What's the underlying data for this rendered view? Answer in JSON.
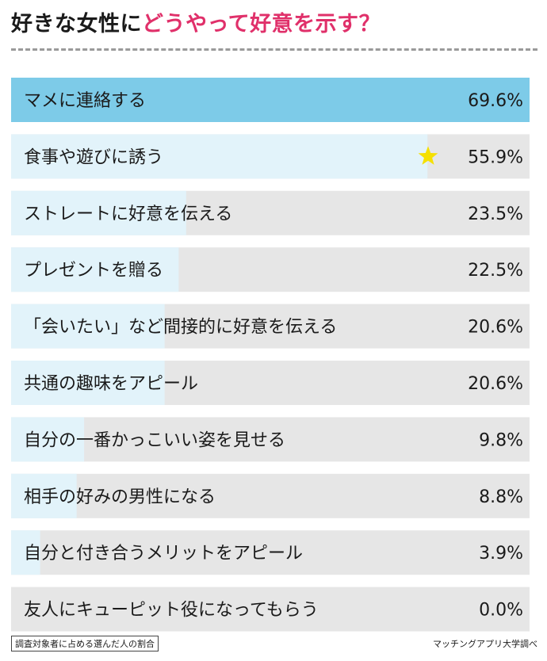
{
  "header": {
    "title_main": "好きな女性に",
    "title_accent": "どうやって好意を示す？"
  },
  "colors": {
    "accent": "#e0306a",
    "bar_top": "#7dcbe8",
    "bar_fill": "#e2f3fa",
    "bar_track": "#e6e6e6",
    "star": "#f5e000"
  },
  "chart_data": {
    "type": "bar",
    "orientation": "horizontal",
    "categories": [
      "マメに連絡する",
      "食事や遊びに誘う",
      "ストレートに好意を伝える",
      "プレゼントを贈る",
      "「会いたい」など間接的に好意を伝える",
      "共通の趣味をアピール",
      "自分の一番かっこいい姿を見せる",
      "相手の好みの男性になる",
      "自分と付き合うメリットをアピール",
      "友人にキューピット役になってもらう"
    ],
    "values": [
      69.6,
      55.9,
      23.5,
      22.5,
      20.6,
      20.6,
      9.8,
      8.8,
      3.9,
      0.0
    ],
    "value_labels": [
      "69.6%",
      "55.9%",
      "23.5%",
      "22.5%",
      "20.6%",
      "20.6%",
      "9.8%",
      "8.8%",
      "3.9%",
      "0.0%"
    ],
    "xlim": [
      0,
      69.6
    ],
    "highlight_index": 0,
    "star_index": 1,
    "star_icon": "star-icon"
  },
  "footer": {
    "note": "調査対象者に占める選んだ人の割合",
    "source": "マッチングアプリ大学調べ"
  }
}
